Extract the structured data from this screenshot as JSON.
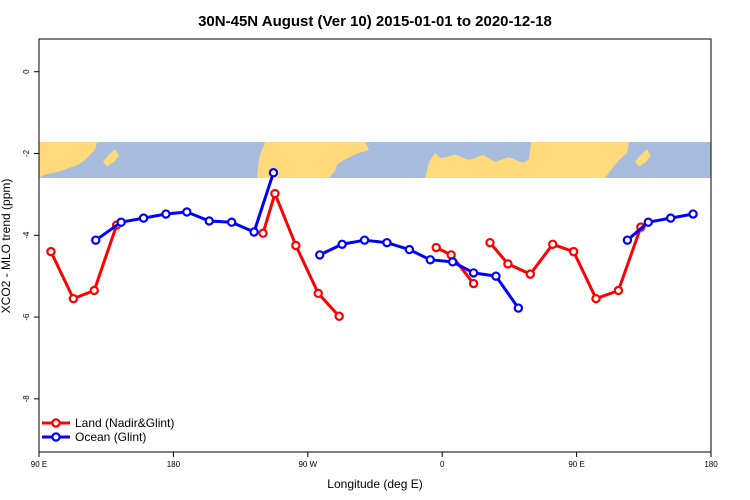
{
  "chart_data": {
    "type": "line",
    "title": "30N-45N August (Ver 10)   2015-01-01 to 2020-12-18",
    "xlabel": "Longitude (deg E)",
    "ylabel": "XCO2 - MLO trend (ppm)",
    "xlim": [
      90,
      540
    ],
    "ylim": [
      -9.3,
      0.8
    ],
    "x_ticks": [
      {
        "value": 90,
        "label": "90 E"
      },
      {
        "value": 180,
        "label": "180"
      },
      {
        "value": 270,
        "label": "90 W"
      },
      {
        "value": 360,
        "label": "0"
      },
      {
        "value": 450,
        "label": "90 E"
      },
      {
        "value": 540,
        "label": "180"
      }
    ],
    "y_ticks": [
      {
        "value": 0,
        "label": "0"
      },
      {
        "value": -2,
        "label": "-2"
      },
      {
        "value": -4,
        "label": "-4"
      },
      {
        "value": -6,
        "label": "-6"
      },
      {
        "value": -8,
        "label": "-8"
      }
    ],
    "map_band": {
      "y_top": -1.72,
      "y_bottom": -2.6,
      "ocean_color": "#A7BCDC",
      "land_color": "#FFD97A"
    },
    "legend_position": "bottom-left",
    "series": [
      {
        "name": "Land (Nadir&Glint)",
        "color": "#FF0000",
        "segments": [
          [
            [
              98,
              -4.4
            ],
            [
              113,
              -5.55
            ],
            [
              127,
              -5.35
            ],
            [
              142,
              -3.75
            ]
          ],
          [
            [
              240,
              -3.95
            ],
            [
              248,
              -2.98
            ],
            [
              262,
              -4.25
            ],
            [
              277,
              -5.42
            ],
            [
              291,
              -5.98
            ]
          ],
          [
            [
              356,
              -4.3
            ],
            [
              366,
              -4.48
            ],
            [
              381,
              -5.18
            ]
          ],
          [
            [
              392,
              -4.18
            ],
            [
              404,
              -4.7
            ],
            [
              419,
              -4.95
            ],
            [
              434,
              -4.22
            ],
            [
              448,
              -4.4
            ],
            [
              463,
              -5.55
            ],
            [
              478,
              -5.35
            ],
            [
              493,
              -3.8
            ]
          ]
        ]
      },
      {
        "name": "Ocean (Glint)",
        "color": "#0000FF",
        "segments": [
          [
            [
              128,
              -4.12
            ],
            [
              145,
              -3.68
            ],
            [
              160,
              -3.58
            ],
            [
              175,
              -3.48
            ],
            [
              189,
              -3.43
            ],
            [
              204,
              -3.65
            ],
            [
              219,
              -3.68
            ],
            [
              234,
              -3.92
            ],
            [
              247,
              -2.47
            ]
          ],
          [
            [
              278,
              -4.48
            ],
            [
              293,
              -4.22
            ],
            [
              308,
              -4.12
            ],
            [
              323,
              -4.18
            ],
            [
              338,
              -4.35
            ],
            [
              352,
              -4.6
            ],
            [
              367,
              -4.65
            ],
            [
              381,
              -4.92
            ],
            [
              396,
              -5.0
            ],
            [
              411,
              -5.78
            ]
          ],
          [
            [
              484,
              -4.12
            ],
            [
              498,
              -3.68
            ],
            [
              513,
              -3.58
            ],
            [
              528,
              -3.48
            ]
          ]
        ]
      }
    ]
  }
}
